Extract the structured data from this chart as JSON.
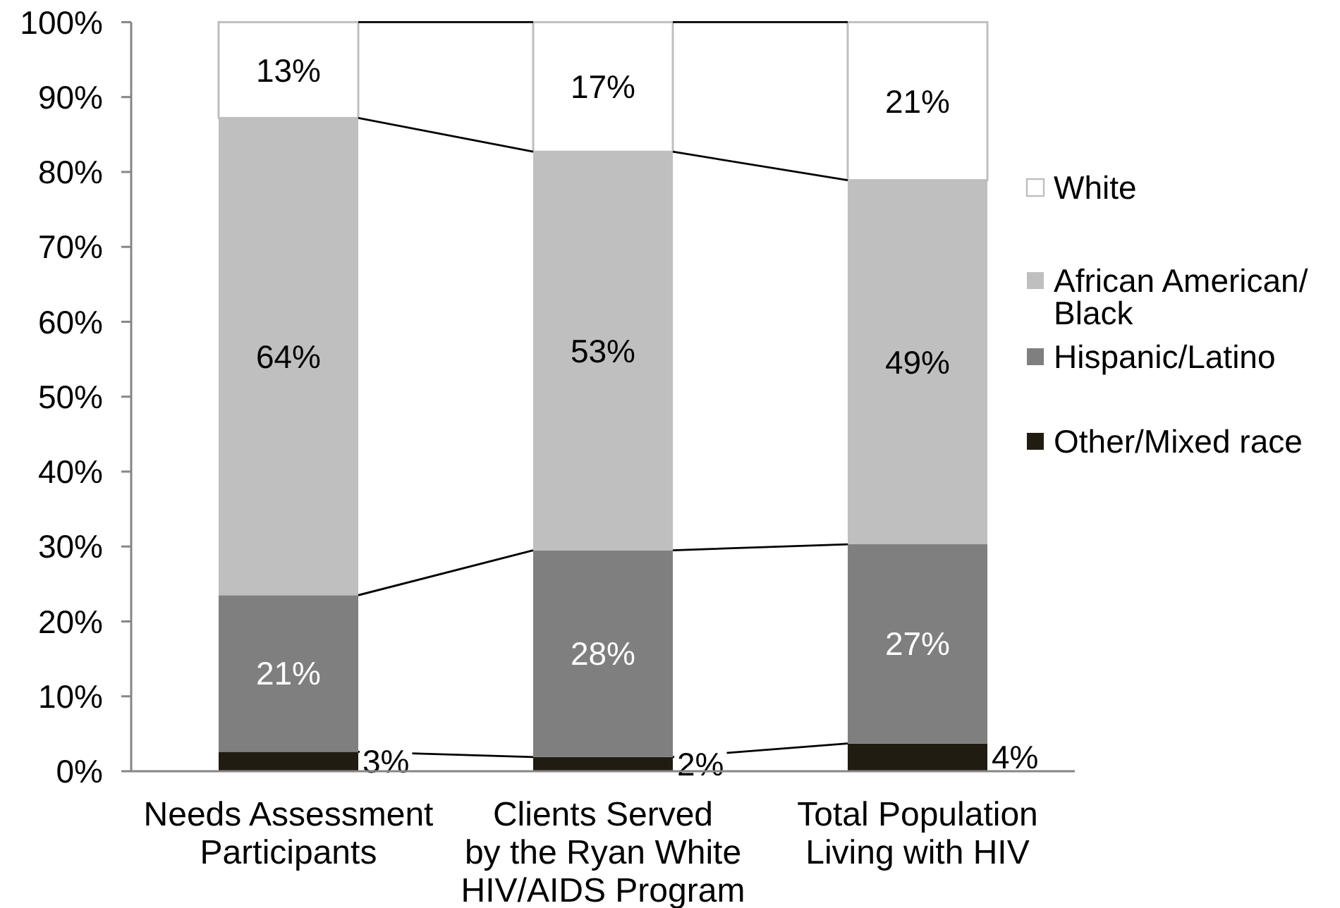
{
  "chart_data": {
    "type": "bar",
    "stacked": true,
    "categories": [
      "Needs Assessment\nParticipants",
      "Clients Served\nby the Ryan White\nHIV/AIDS Program",
      "Total Population\nLiving with HIV"
    ],
    "series": [
      {
        "name": "Other/Mixed race",
        "color": "#201c12",
        "values": [
          2.6,
          1.9,
          3.7
        ],
        "value_labels": [
          "3%",
          "2%",
          "4%"
        ]
      },
      {
        "name": "Hispanic/Latino",
        "color": "#7f7f7f",
        "values": [
          20.9,
          27.6,
          26.6
        ],
        "value_labels": [
          "21%",
          "28%",
          "27%"
        ]
      },
      {
        "name": "African American/Black",
        "color": "#bfbfbf",
        "values": [
          63.7,
          53.2,
          48.6
        ],
        "value_labels": [
          "64%",
          "53%",
          "49%"
        ]
      },
      {
        "name": "White",
        "color": "#ffffff",
        "values": [
          12.8,
          17.3,
          21.1
        ],
        "value_labels": [
          "13%",
          "17%",
          "21%"
        ]
      }
    ],
    "ylim": [
      0,
      100
    ],
    "yticks": [
      {
        "value": 0,
        "label": "0%"
      },
      {
        "value": 10,
        "label": "10%"
      },
      {
        "value": 20,
        "label": "20%"
      },
      {
        "value": 30,
        "label": "30%"
      },
      {
        "value": 40,
        "label": "40%"
      },
      {
        "value": 50,
        "label": "50%"
      },
      {
        "value": 60,
        "label": "60%"
      },
      {
        "value": 70,
        "label": "70%"
      },
      {
        "value": 80,
        "label": "80%"
      },
      {
        "value": 90,
        "label": "90%"
      },
      {
        "value": 100,
        "label": "100%"
      }
    ],
    "legend": "right",
    "grid": false
  }
}
